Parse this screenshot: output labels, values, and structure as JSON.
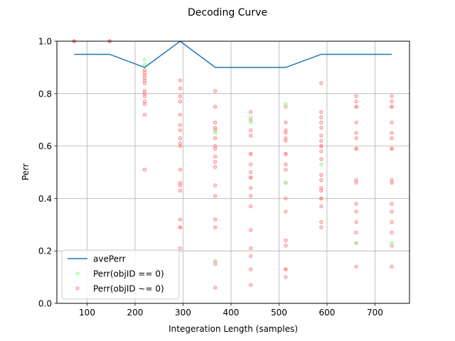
{
  "chart_data": {
    "type": "scatter",
    "title": "Decoding Curve",
    "xlabel": "Integeration Length (samples)",
    "ylabel": "Perr",
    "xlim": [
      37,
      772
    ],
    "ylim": [
      0,
      1
    ],
    "xticks": [
      100,
      200,
      300,
      400,
      500,
      600,
      700
    ],
    "yticks": [
      0.0,
      0.2,
      0.4,
      0.6,
      0.8,
      1.0
    ],
    "ytick_labels": [
      "0.0",
      "0.2",
      "0.4",
      "0.6",
      "0.8",
      "1.0"
    ],
    "grid": true,
    "legend": "lower left",
    "x": [
      73,
      147,
      220,
      294,
      367,
      441,
      514,
      588,
      661,
      735
    ],
    "series": [
      {
        "name": "avePerr",
        "kind": "line",
        "color": "#1f77b4",
        "values": [
          0.95,
          0.95,
          0.9,
          1.0,
          0.9,
          0.9,
          0.9,
          0.95,
          0.95,
          0.95
        ]
      },
      {
        "name": "Perr(objID == 0)",
        "kind": "scatter",
        "color": "#7fff7f",
        "points": [
          [
            220,
            0.93
          ],
          [
            220,
            0.91
          ],
          [
            367,
            0.65
          ],
          [
            367,
            0.16
          ],
          [
            441,
            0.71
          ],
          [
            441,
            0.69
          ],
          [
            514,
            0.76
          ],
          [
            514,
            0.46
          ],
          [
            588,
            0.53
          ],
          [
            661,
            0.23
          ],
          [
            735,
            0.23
          ]
        ]
      },
      {
        "name": "Perr(objID ~= 0)",
        "kind": "scatter",
        "color": "#ff7f7f",
        "points": [
          [
            73,
            1.0
          ],
          [
            73,
            1.0
          ],
          [
            73,
            1.0
          ],
          [
            147,
            1.0
          ],
          [
            147,
            1.0
          ],
          [
            147,
            1.0
          ],
          [
            220,
            0.89
          ],
          [
            220,
            0.88
          ],
          [
            220,
            0.87
          ],
          [
            220,
            0.86
          ],
          [
            220,
            0.85
          ],
          [
            220,
            0.84
          ],
          [
            220,
            0.81
          ],
          [
            220,
            0.8
          ],
          [
            220,
            0.79
          ],
          [
            220,
            0.77
          ],
          [
            220,
            0.76
          ],
          [
            220,
            0.72
          ],
          [
            220,
            0.51
          ],
          [
            294,
            0.85
          ],
          [
            294,
            0.82
          ],
          [
            294,
            0.79
          ],
          [
            294,
            0.77
          ],
          [
            294,
            0.72
          ],
          [
            294,
            0.68
          ],
          [
            294,
            0.66
          ],
          [
            294,
            0.63
          ],
          [
            294,
            0.61
          ],
          [
            294,
            0.6
          ],
          [
            294,
            0.51
          ],
          [
            294,
            0.46
          ],
          [
            294,
            0.45
          ],
          [
            294,
            0.43
          ],
          [
            294,
            0.32
          ],
          [
            294,
            0.29
          ],
          [
            294,
            0.29
          ],
          [
            294,
            0.21
          ],
          [
            367,
            0.81
          ],
          [
            367,
            0.75
          ],
          [
            367,
            0.69
          ],
          [
            367,
            0.67
          ],
          [
            367,
            0.66
          ],
          [
            367,
            0.63
          ],
          [
            367,
            0.6
          ],
          [
            367,
            0.59
          ],
          [
            367,
            0.56
          ],
          [
            367,
            0.54
          ],
          [
            367,
            0.52
          ],
          [
            367,
            0.45
          ],
          [
            367,
            0.41
          ],
          [
            367,
            0.32
          ],
          [
            367,
            0.29
          ],
          [
            367,
            0.16
          ],
          [
            367,
            0.15
          ],
          [
            367,
            0.06
          ],
          [
            441,
            0.73
          ],
          [
            441,
            0.7
          ],
          [
            441,
            0.66
          ],
          [
            441,
            0.64
          ],
          [
            441,
            0.57
          ],
          [
            441,
            0.57
          ],
          [
            441,
            0.53
          ],
          [
            441,
            0.5
          ],
          [
            441,
            0.48
          ],
          [
            441,
            0.48
          ],
          [
            441,
            0.44
          ],
          [
            441,
            0.41
          ],
          [
            441,
            0.37
          ],
          [
            441,
            0.28
          ],
          [
            441,
            0.21
          ],
          [
            441,
            0.18
          ],
          [
            441,
            0.13
          ],
          [
            441,
            0.07
          ],
          [
            514,
            0.75
          ],
          [
            514,
            0.69
          ],
          [
            514,
            0.66
          ],
          [
            514,
            0.65
          ],
          [
            514,
            0.63
          ],
          [
            514,
            0.62
          ],
          [
            514,
            0.57
          ],
          [
            514,
            0.57
          ],
          [
            514,
            0.53
          ],
          [
            514,
            0.51
          ],
          [
            514,
            0.46
          ],
          [
            514,
            0.4
          ],
          [
            514,
            0.35
          ],
          [
            514,
            0.24
          ],
          [
            514,
            0.22
          ],
          [
            514,
            0.13
          ],
          [
            514,
            0.13
          ],
          [
            514,
            0.1
          ],
          [
            588,
            0.84
          ],
          [
            588,
            0.73
          ],
          [
            588,
            0.71
          ],
          [
            588,
            0.69
          ],
          [
            588,
            0.67
          ],
          [
            588,
            0.64
          ],
          [
            588,
            0.62
          ],
          [
            588,
            0.6
          ],
          [
            588,
            0.6
          ],
          [
            588,
            0.58
          ],
          [
            588,
            0.55
          ],
          [
            588,
            0.49
          ],
          [
            588,
            0.47
          ],
          [
            588,
            0.44
          ],
          [
            588,
            0.43
          ],
          [
            588,
            0.4
          ],
          [
            588,
            0.4
          ],
          [
            588,
            0.37
          ],
          [
            588,
            0.31
          ],
          [
            588,
            0.29
          ],
          [
            661,
            0.79
          ],
          [
            661,
            0.77
          ],
          [
            661,
            0.75
          ],
          [
            661,
            0.75
          ],
          [
            661,
            0.69
          ],
          [
            661,
            0.65
          ],
          [
            661,
            0.63
          ],
          [
            661,
            0.59
          ],
          [
            661,
            0.59
          ],
          [
            661,
            0.47
          ],
          [
            661,
            0.46
          ],
          [
            661,
            0.38
          ],
          [
            661,
            0.35
          ],
          [
            661,
            0.31
          ],
          [
            661,
            0.27
          ],
          [
            661,
            0.23
          ],
          [
            661,
            0.14
          ],
          [
            735,
            0.79
          ],
          [
            735,
            0.77
          ],
          [
            735,
            0.75
          ],
          [
            735,
            0.75
          ],
          [
            735,
            0.69
          ],
          [
            735,
            0.65
          ],
          [
            735,
            0.63
          ],
          [
            735,
            0.59
          ],
          [
            735,
            0.59
          ],
          [
            735,
            0.47
          ],
          [
            735,
            0.46
          ],
          [
            735,
            0.38
          ],
          [
            735,
            0.35
          ],
          [
            735,
            0.31
          ],
          [
            735,
            0.27
          ],
          [
            735,
            0.22
          ],
          [
            735,
            0.14
          ]
        ]
      }
    ]
  }
}
